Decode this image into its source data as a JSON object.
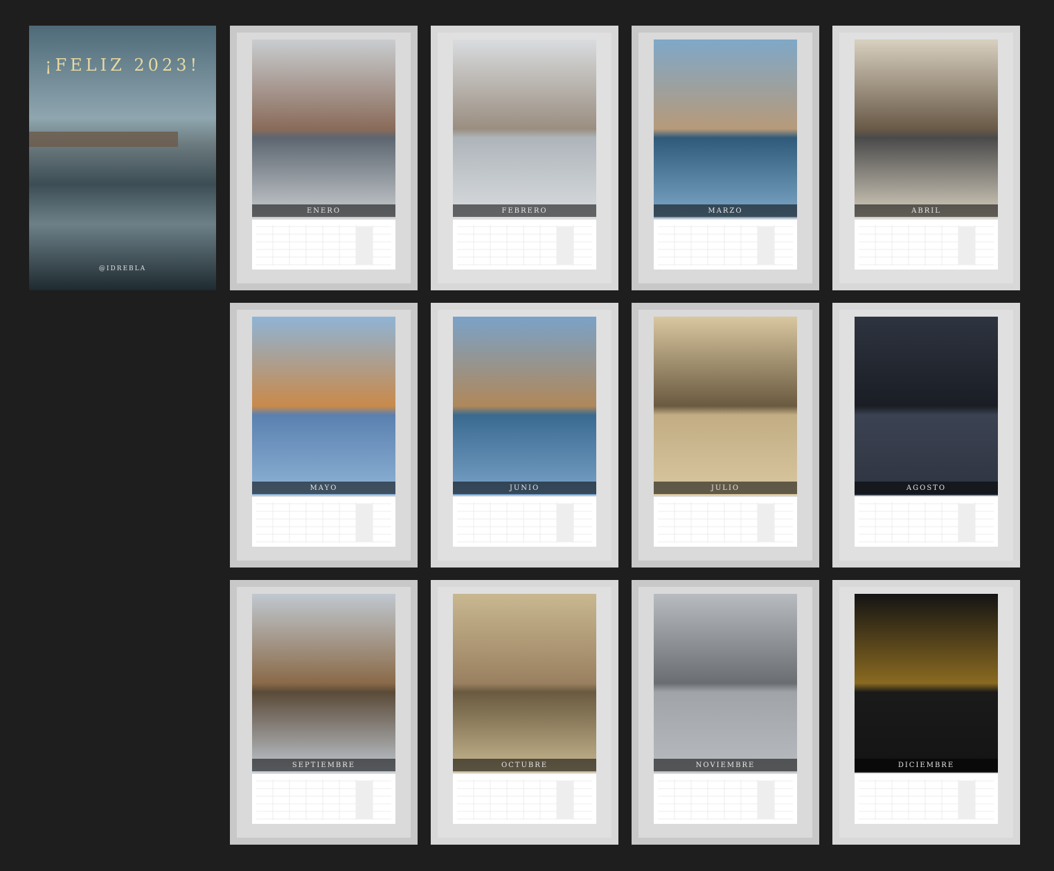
{
  "cover": {
    "title": "¡FELIZ 2023!",
    "handle": "@IDREBLA"
  },
  "months": [
    "ENERO",
    "FEBRERO",
    "MARZO",
    "ABRIL",
    "MAYO",
    "JUNIO",
    "JULIO",
    "AGOSTO",
    "SEPTIEMBRE",
    "OCTUBRE",
    "NOVIEMBRE",
    "DICIEMBRE"
  ]
}
